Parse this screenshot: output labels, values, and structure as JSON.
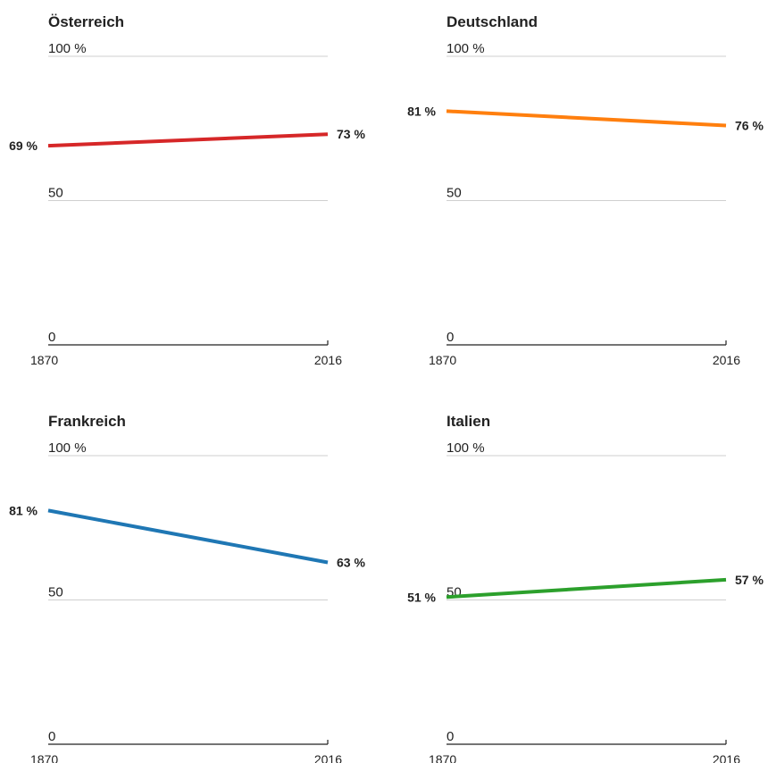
{
  "chart_data": [
    {
      "type": "line",
      "title": "Österreich",
      "x": [
        "1870",
        "2016"
      ],
      "values": [
        69,
        73
      ],
      "start_label": "69 %",
      "end_label": "73 %",
      "color": "#d62728",
      "ylim": [
        0,
        100
      ],
      "yticks": [
        "0",
        "50",
        "100 %"
      ],
      "xticks": [
        "1870",
        "2016"
      ]
    },
    {
      "type": "line",
      "title": "Deutschland",
      "x": [
        "1870",
        "2016"
      ],
      "values": [
        81,
        76
      ],
      "start_label": "81 %",
      "end_label": "76 %",
      "color": "#ff7f0e",
      "ylim": [
        0,
        100
      ],
      "yticks": [
        "0",
        "50",
        "100 %"
      ],
      "xticks": [
        "1870",
        "2016"
      ]
    },
    {
      "type": "line",
      "title": "Frankreich",
      "x": [
        "1870",
        "2016"
      ],
      "values": [
        81,
        63
      ],
      "start_label": "81 %",
      "end_label": "63 %",
      "color": "#1f77b4",
      "ylim": [
        0,
        100
      ],
      "yticks": [
        "0",
        "50",
        "100 %"
      ],
      "xticks": [
        "1870",
        "2016"
      ]
    },
    {
      "type": "line",
      "title": "Italien",
      "x": [
        "1870",
        "2016"
      ],
      "values": [
        51,
        57
      ],
      "start_label": "51 %",
      "end_label": "57 %",
      "color": "#2ca02c",
      "ylim": [
        0,
        100
      ],
      "yticks": [
        "0",
        "50",
        "100 %"
      ],
      "xticks": [
        "1870",
        "2016"
      ]
    }
  ]
}
